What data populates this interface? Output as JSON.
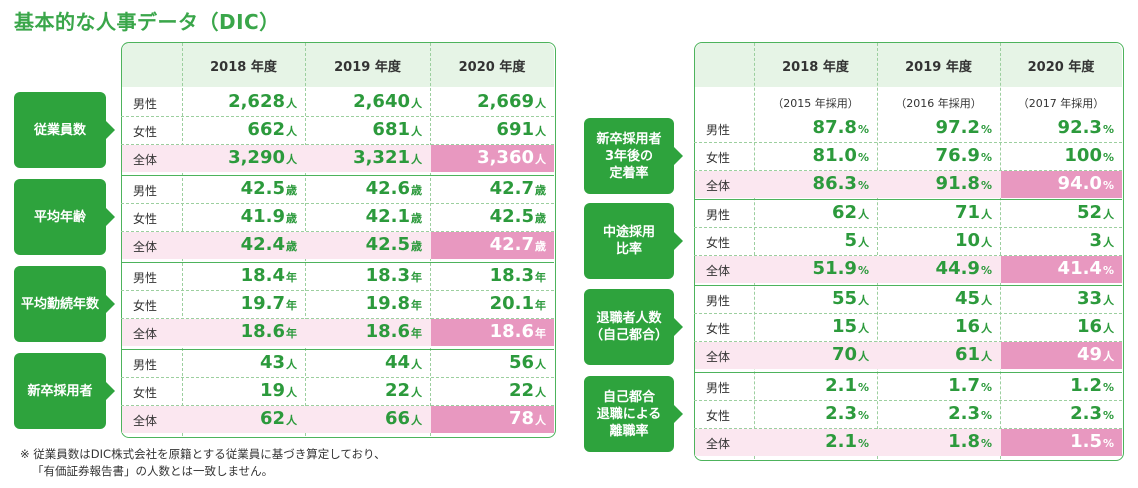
{
  "title": "基本的な人事データ（DIC）",
  "left_table": {
    "columns": [
      "2018 年度",
      "2019 年度",
      "2020 年度"
    ],
    "groups": [
      {
        "name": "従業員数",
        "rows": [
          {
            "label": "男性",
            "values": [
              "2,628",
              "2,640",
              "2,669"
            ],
            "unit": "人"
          },
          {
            "label": "女性",
            "values": [
              "662",
              "681",
              "691"
            ],
            "unit": "人"
          },
          {
            "label": "全体",
            "values": [
              "3,290",
              "3,321",
              "3,360"
            ],
            "unit": "人"
          }
        ]
      },
      {
        "name": "平均年齢",
        "rows": [
          {
            "label": "男性",
            "values": [
              "42.5",
              "42.6",
              "42.7"
            ],
            "unit": "歳"
          },
          {
            "label": "女性",
            "values": [
              "41.9",
              "42.1",
              "42.5"
            ],
            "unit": "歳"
          },
          {
            "label": "全体",
            "values": [
              "42.4",
              "42.5",
              "42.7"
            ],
            "unit": "歳"
          }
        ]
      },
      {
        "name": "平均勤続年数",
        "rows": [
          {
            "label": "男性",
            "values": [
              "18.4",
              "18.3",
              "18.3"
            ],
            "unit": "年"
          },
          {
            "label": "女性",
            "values": [
              "19.7",
              "19.8",
              "20.1"
            ],
            "unit": "年"
          },
          {
            "label": "全体",
            "values": [
              "18.6",
              "18.6",
              "18.6"
            ],
            "unit": "年"
          }
        ]
      },
      {
        "name": "新卒採用者",
        "rows": [
          {
            "label": "男性",
            "values": [
              "43",
              "44",
              "56"
            ],
            "unit": "人"
          },
          {
            "label": "女性",
            "values": [
              "19",
              "22",
              "22"
            ],
            "unit": "人"
          },
          {
            "label": "全体",
            "values": [
              "62",
              "66",
              "78"
            ],
            "unit": "人"
          }
        ]
      }
    ]
  },
  "right_table": {
    "columns": [
      "2018 年度",
      "2019 年度",
      "2020 年度"
    ],
    "sub_labels": [
      "（2015 年採用）",
      "（2016 年採用）",
      "（2017 年採用）"
    ],
    "groups": [
      {
        "name": "新卒採用者\n3年後の\n定着率",
        "rows": [
          {
            "label": "男性",
            "values": [
              "87.8",
              "97.2",
              "92.3"
            ],
            "unit": "%"
          },
          {
            "label": "女性",
            "values": [
              "81.0",
              "76.9",
              "100"
            ],
            "unit": "%"
          },
          {
            "label": "全体",
            "values": [
              "86.3",
              "91.8",
              "94.0"
            ],
            "unit": "%"
          }
        ]
      },
      {
        "name": "中途採用\n比率",
        "rows": [
          {
            "label": "男性",
            "values": [
              "62",
              "71",
              "52"
            ],
            "unit": "人"
          },
          {
            "label": "女性",
            "values": [
              "5",
              "10",
              "3"
            ],
            "unit": "人"
          },
          {
            "label": "全体",
            "values": [
              "51.9",
              "44.9",
              "41.4"
            ],
            "unit": "%"
          }
        ]
      },
      {
        "name": "退職者人数\n（自己都合）",
        "rows": [
          {
            "label": "男性",
            "values": [
              "55",
              "45",
              "33"
            ],
            "unit": "人"
          },
          {
            "label": "女性",
            "values": [
              "15",
              "16",
              "16"
            ],
            "unit": "人"
          },
          {
            "label": "全体",
            "values": [
              "70",
              "61",
              "49"
            ],
            "unit": "人"
          }
        ]
      },
      {
        "name": "自己都合\n退職による\n離職率",
        "rows": [
          {
            "label": "男性",
            "values": [
              "2.1",
              "1.7",
              "1.2"
            ],
            "unit": "%"
          },
          {
            "label": "女性",
            "values": [
              "2.3",
              "2.3",
              "2.3"
            ],
            "unit": "%"
          },
          {
            "label": "全体",
            "values": [
              "2.1",
              "1.8",
              "1.5"
            ],
            "unit": "%"
          }
        ]
      }
    ]
  },
  "footnote": [
    "※ 従業員数はDIC株式会社を原籍とする従業員に基づき算定しており、",
    "「有価証券報告書」の人数とは一致しません。"
  ],
  "colors": {
    "accent_green": "#2ea33d",
    "value_green": "#2c9a3c",
    "highlight_pink": "#e898c0",
    "band_pink": "#fbe7f0",
    "header_green": "#e6f4e6"
  }
}
